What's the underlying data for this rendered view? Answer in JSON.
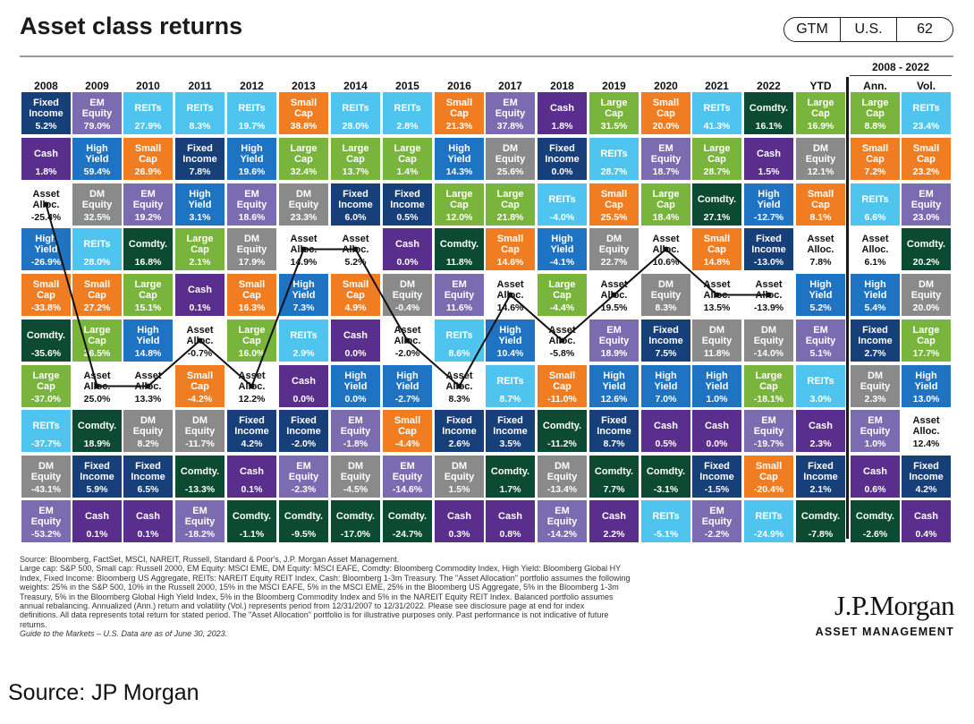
{
  "header": {
    "title": "Asset class returns",
    "badges": [
      "GTM",
      "U.S.",
      "62"
    ]
  },
  "chart_data": {
    "type": "table",
    "columns": [
      "2008",
      "2009",
      "2010",
      "2011",
      "2012",
      "2013",
      "2014",
      "2015",
      "2016",
      "2017",
      "2018",
      "2019",
      "2020",
      "2021",
      "2022",
      "YTD",
      "Ann.",
      "Vol."
    ],
    "column_group": {
      "label": "2008 - 2022",
      "columns": [
        "Ann.",
        "Vol."
      ]
    },
    "asset_colors": {
      "Fixed Income": "#173f7a",
      "EM Equity": "#7b6bb0",
      "REITs": "#4fc4ee",
      "Small Cap": "#f07d22",
      "Cash": "#5a2e8c",
      "Comdty.": "#0c4a33",
      "High Yield": "#1f73c3",
      "Large Cap": "#79b43c",
      "DM Equity": "#8a8a8a",
      "Asset Alloc.": "#ffffff"
    },
    "cells": [
      [
        [
          "Fixed Income",
          "5.2%"
        ],
        [
          "Cash",
          "1.8%"
        ],
        [
          "Asset Alloc.",
          "-25.4%"
        ],
        [
          "High Yield",
          "-26.9%"
        ],
        [
          "Small Cap",
          "-33.8%"
        ],
        [
          "Comdty.",
          "-35.6%"
        ],
        [
          "Large Cap",
          "-37.0%"
        ],
        [
          "REITs",
          "-37.7%"
        ],
        [
          "DM Equity",
          "-43.1%"
        ],
        [
          "EM Equity",
          "-53.2%"
        ]
      ],
      [
        [
          "EM Equity",
          "79.0%"
        ],
        [
          "High Yield",
          "59.4%"
        ],
        [
          "DM Equity",
          "32.5%"
        ],
        [
          "REITs",
          "28.0%"
        ],
        [
          "Small Cap",
          "27.2%"
        ],
        [
          "Large Cap",
          "26.5%"
        ],
        [
          "Asset Alloc.",
          "25.0%"
        ],
        [
          "Comdty.",
          "18.9%"
        ],
        [
          "Fixed Income",
          "5.9%"
        ],
        [
          "Cash",
          "0.1%"
        ]
      ],
      [
        [
          "REITs",
          "27.9%"
        ],
        [
          "Small Cap",
          "26.9%"
        ],
        [
          "EM Equity",
          "19.2%"
        ],
        [
          "Comdty.",
          "16.8%"
        ],
        [
          "Large Cap",
          "15.1%"
        ],
        [
          "High Yield",
          "14.8%"
        ],
        [
          "Asset Alloc.",
          "13.3%"
        ],
        [
          "DM Equity",
          "8.2%"
        ],
        [
          "Fixed Income",
          "6.5%"
        ],
        [
          "Cash",
          "0.1%"
        ]
      ],
      [
        [
          "REITs",
          "8.3%"
        ],
        [
          "Fixed Income",
          "7.8%"
        ],
        [
          "High Yield",
          "3.1%"
        ],
        [
          "Large Cap",
          "2.1%"
        ],
        [
          "Cash",
          "0.1%"
        ],
        [
          "Asset Alloc.",
          "-0.7%"
        ],
        [
          "Small Cap",
          "-4.2%"
        ],
        [
          "DM Equity",
          "-11.7%"
        ],
        [
          "Comdty.",
          "-13.3%"
        ],
        [
          "EM Equity",
          "-18.2%"
        ]
      ],
      [
        [
          "REITs",
          "19.7%"
        ],
        [
          "High Yield",
          "19.6%"
        ],
        [
          "EM Equity",
          "18.6%"
        ],
        [
          "DM Equity",
          "17.9%"
        ],
        [
          "Small Cap",
          "16.3%"
        ],
        [
          "Large Cap",
          "16.0%"
        ],
        [
          "Asset Alloc.",
          "12.2%"
        ],
        [
          "Fixed Income",
          "4.2%"
        ],
        [
          "Cash",
          "0.1%"
        ],
        [
          "Comdty.",
          "-1.1%"
        ]
      ],
      [
        [
          "Small Cap",
          "38.8%"
        ],
        [
          "Large Cap",
          "32.4%"
        ],
        [
          "DM Equity",
          "23.3%"
        ],
        [
          "Asset Alloc.",
          "14.9%"
        ],
        [
          "High Yield",
          "7.3%"
        ],
        [
          "REITs",
          "2.9%"
        ],
        [
          "Cash",
          "0.0%"
        ],
        [
          "Fixed Income",
          "-2.0%"
        ],
        [
          "EM Equity",
          "-2.3%"
        ],
        [
          "Comdty.",
          "-9.5%"
        ]
      ],
      [
        [
          "REITs",
          "28.0%"
        ],
        [
          "Large Cap",
          "13.7%"
        ],
        [
          "Fixed Income",
          "6.0%"
        ],
        [
          "Asset Alloc.",
          "5.2%"
        ],
        [
          "Small Cap",
          "4.9%"
        ],
        [
          "Cash",
          "0.0%"
        ],
        [
          "High Yield",
          "0.0%"
        ],
        [
          "EM Equity",
          "-1.8%"
        ],
        [
          "DM Equity",
          "-4.5%"
        ],
        [
          "Comdty.",
          "-17.0%"
        ]
      ],
      [
        [
          "REITs",
          "2.8%"
        ],
        [
          "Large Cap",
          "1.4%"
        ],
        [
          "Fixed Income",
          "0.5%"
        ],
        [
          "Cash",
          "0.0%"
        ],
        [
          "DM Equity",
          "-0.4%"
        ],
        [
          "Asset Alloc.",
          "-2.0%"
        ],
        [
          "High Yield",
          "-2.7%"
        ],
        [
          "Small Cap",
          "-4.4%"
        ],
        [
          "EM Equity",
          "-14.6%"
        ],
        [
          "Comdty.",
          "-24.7%"
        ]
      ],
      [
        [
          "Small Cap",
          "21.3%"
        ],
        [
          "High Yield",
          "14.3%"
        ],
        [
          "Large Cap",
          "12.0%"
        ],
        [
          "Comdty.",
          "11.8%"
        ],
        [
          "EM Equity",
          "11.6%"
        ],
        [
          "REITs",
          "8.6%"
        ],
        [
          "Asset Alloc.",
          "8.3%"
        ],
        [
          "Fixed Income",
          "2.6%"
        ],
        [
          "DM Equity",
          "1.5%"
        ],
        [
          "Cash",
          "0.3%"
        ]
      ],
      [
        [
          "EM Equity",
          "37.8%"
        ],
        [
          "DM Equity",
          "25.6%"
        ],
        [
          "Large Cap",
          "21.8%"
        ],
        [
          "Small Cap",
          "14.6%"
        ],
        [
          "Asset Alloc.",
          "14.6%"
        ],
        [
          "High Yield",
          "10.4%"
        ],
        [
          "REITs",
          "8.7%"
        ],
        [
          "Fixed Income",
          "3.5%"
        ],
        [
          "Comdty.",
          "1.7%"
        ],
        [
          "Cash",
          "0.8%"
        ]
      ],
      [
        [
          "Cash",
          "1.8%"
        ],
        [
          "Fixed Income",
          "0.0%"
        ],
        [
          "REITs",
          "-4.0%"
        ],
        [
          "High Yield",
          "-4.1%"
        ],
        [
          "Large Cap",
          "-4.4%"
        ],
        [
          "Asset Alloc.",
          "-5.8%"
        ],
        [
          "Small Cap",
          "-11.0%"
        ],
        [
          "Comdty.",
          "-11.2%"
        ],
        [
          "DM Equity",
          "-13.4%"
        ],
        [
          "EM Equity",
          "-14.2%"
        ]
      ],
      [
        [
          "Large Cap",
          "31.5%"
        ],
        [
          "REITs",
          "28.7%"
        ],
        [
          "Small Cap",
          "25.5%"
        ],
        [
          "DM Equity",
          "22.7%"
        ],
        [
          "Asset Alloc.",
          "19.5%"
        ],
        [
          "EM Equity",
          "18.9%"
        ],
        [
          "High Yield",
          "12.6%"
        ],
        [
          "Fixed Income",
          "8.7%"
        ],
        [
          "Comdty.",
          "7.7%"
        ],
        [
          "Cash",
          "2.2%"
        ]
      ],
      [
        [
          "Small Cap",
          "20.0%"
        ],
        [
          "EM Equity",
          "18.7%"
        ],
        [
          "Large Cap",
          "18.4%"
        ],
        [
          "Asset Alloc.",
          "10.6%"
        ],
        [
          "DM Equity",
          "8.3%"
        ],
        [
          "Fixed Income",
          "7.5%"
        ],
        [
          "High Yield",
          "7.0%"
        ],
        [
          "Cash",
          "0.5%"
        ],
        [
          "Comdty.",
          "-3.1%"
        ],
        [
          "REITs",
          "-5.1%"
        ]
      ],
      [
        [
          "REITs",
          "41.3%"
        ],
        [
          "Large Cap",
          "28.7%"
        ],
        [
          "Comdty.",
          "27.1%"
        ],
        [
          "Small Cap",
          "14.8%"
        ],
        [
          "Asset Alloc.",
          "13.5%"
        ],
        [
          "DM Equity",
          "11.8%"
        ],
        [
          "High Yield",
          "1.0%"
        ],
        [
          "Cash",
          "0.0%"
        ],
        [
          "Fixed Income",
          "-1.5%"
        ],
        [
          "EM Equity",
          "-2.2%"
        ]
      ],
      [
        [
          "Comdty.",
          "16.1%"
        ],
        [
          "Cash",
          "1.5%"
        ],
        [
          "High Yield",
          "-12.7%"
        ],
        [
          "Fixed Income",
          "-13.0%"
        ],
        [
          "Asset Alloc.",
          "-13.9%"
        ],
        [
          "DM Equity",
          "-14.0%"
        ],
        [
          "Large Cap",
          "-18.1%"
        ],
        [
          "EM Equity",
          "-19.7%"
        ],
        [
          "Small Cap",
          "-20.4%"
        ],
        [
          "REITs",
          "-24.9%"
        ]
      ],
      [
        [
          "Large Cap",
          "16.9%"
        ],
        [
          "DM Equity",
          "12.1%"
        ],
        [
          "Small Cap",
          "8.1%"
        ],
        [
          "Asset Alloc.",
          "7.8%"
        ],
        [
          "High Yield",
          "5.2%"
        ],
        [
          "EM Equity",
          "5.1%"
        ],
        [
          "REITs",
          "3.0%"
        ],
        [
          "Cash",
          "2.3%"
        ],
        [
          "Fixed Income",
          "2.1%"
        ],
        [
          "Comdty.",
          "-7.8%"
        ]
      ],
      [
        [
          "Large Cap",
          "8.8%"
        ],
        [
          "Small Cap",
          "7.2%"
        ],
        [
          "REITs",
          "6.6%"
        ],
        [
          "Asset Alloc.",
          "6.1%"
        ],
        [
          "High Yield",
          "5.4%"
        ],
        [
          "Fixed Income",
          "2.7%"
        ],
        [
          "DM Equity",
          "2.3%"
        ],
        [
          "EM Equity",
          "1.0%"
        ],
        [
          "Cash",
          "0.6%"
        ],
        [
          "Comdty.",
          "-2.6%"
        ]
      ],
      [
        [
          "REITs",
          "23.4%"
        ],
        [
          "Small Cap",
          "23.2%"
        ],
        [
          "EM Equity",
          "23.0%"
        ],
        [
          "Comdty.",
          "20.2%"
        ],
        [
          "DM Equity",
          "20.0%"
        ],
        [
          "Large Cap",
          "17.7%"
        ],
        [
          "High Yield",
          "13.0%"
        ],
        [
          "Asset Alloc.",
          "12.4%"
        ],
        [
          "Fixed Income",
          "4.2%"
        ],
        [
          "Cash",
          "0.4%"
        ]
      ]
    ],
    "asset_alloc_line_columns": 15
  },
  "footnote": {
    "lines": [
      "Source: Bloomberg, FactSet, MSCI, NAREIT, Russell, Standard & Poor's, J.P. Morgan Asset Management.",
      "Large cap: S&P 500, Small cap: Russell 2000, EM Equity: MSCI EME, DM Equity: MSCI EAFE, Comdty: Bloomberg Commodity Index, High Yield: Bloomberg Global HY",
      "Index, Fixed Income: Bloomberg US Aggregate, REITs: NAREIT Equity REIT Index, Cash: Bloomberg 1-3m Treasury. The \"Asset Allocation\" portfolio assumes the following",
      "weights: 25% in the S&P 500, 10% in the Russell 2000, 15% in the MSCI EAFE, 5% in the MSCI EME, 25% in the Bloomberg US Aggregate, 5% in the Bloomberg 1-3m",
      "Treasury, 5% in the Bloomberg Global High Yield Index, 5% in the Bloomberg Commodity Index and 5% in the NAREIT Equity REIT Index. Balanced portfolio assumes",
      "annual rebalancing. Annualized (Ann.) return and volatility (Vol.) represents period from 12/31/2007 to 12/31/2022. Please see disclosure page at end for index",
      "definitions. All data represents total return for stated period. The \"Asset Allocation\" portfolio is for illustrative purposes only. Past performance is not indicative of future",
      "returns."
    ],
    "guide": "Guide to the Markets – U.S. Data are as of June 30, 2023."
  },
  "logo": {
    "name": "J.P.Morgan",
    "sub": "ASSET MANAGEMENT"
  },
  "source_caption": "Source: JP Morgan"
}
